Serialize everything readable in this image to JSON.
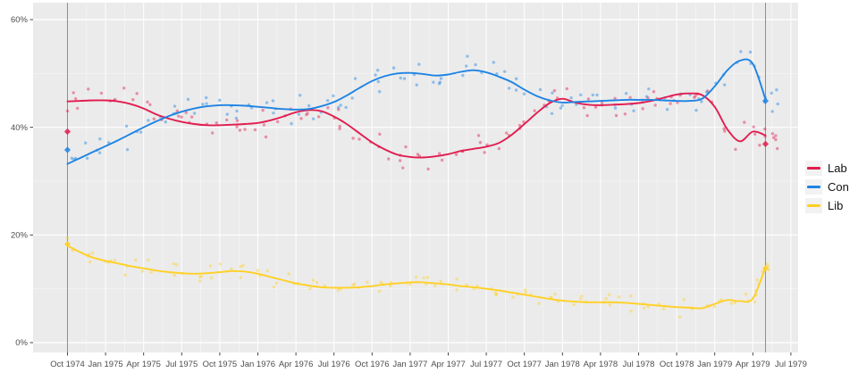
{
  "chart_data": {
    "type": "scatter",
    "title": "",
    "x_axis": {
      "unit": "months since Oct 1974",
      "total_months": 57,
      "months_per_tick": 3,
      "tick_labels": [
        "Oct 1974",
        "Jan 1975",
        "Apr 1975",
        "Jul 1975",
        "Oct 1975",
        "Jan 1976",
        "Apr 1976",
        "Jul 1976",
        "Oct 1976",
        "Jan 1977",
        "Apr 1977",
        "Jul 1977",
        "Oct 1977",
        "Jan 1978",
        "Apr 1978",
        "Jul 1978",
        "Oct 1978",
        "Jan 1979",
        "Apr 1979",
        "Jul 1979"
      ]
    },
    "y_axis": {
      "tick_labels": [
        "0%",
        "20%",
        "40%",
        "60%"
      ],
      "tick_values": [
        0,
        20,
        40,
        60
      ],
      "minor_values": [
        10,
        30,
        50
      ],
      "range": [
        0,
        63
      ]
    },
    "series": [
      {
        "name": "Lab",
        "color": "#e11d50",
        "trend": [
          44.8,
          44.9,
          45.0,
          45.0,
          44.8,
          44.3,
          43.5,
          42.4,
          41.6,
          41.0,
          40.6,
          40.4,
          40.4,
          40.5,
          40.6,
          40.8,
          41.3,
          42.0,
          42.8,
          43.2,
          43.0,
          42.0,
          40.6,
          38.9,
          37.2,
          35.9,
          34.9,
          34.5,
          34.4,
          34.6,
          35.0,
          35.6,
          36.0,
          36.4,
          37.1,
          38.6,
          40.6,
          42.7,
          44.5,
          45.3,
          44.6,
          44.2,
          44.1,
          44.2,
          44.3,
          44.5,
          44.9,
          45.5,
          46.1,
          46.3,
          46.0,
          43.8,
          39.6,
          37.4,
          39.2,
          38.5
        ]
      },
      {
        "name": "Con",
        "color": "#1e84e4",
        "trend": [
          33.2,
          34.3,
          35.4,
          36.5,
          37.6,
          38.8,
          40.0,
          41.1,
          42.1,
          42.9,
          43.5,
          43.9,
          44.1,
          44.1,
          44.0,
          43.8,
          43.6,
          43.4,
          43.3,
          43.4,
          43.9,
          44.7,
          45.9,
          47.3,
          48.6,
          49.5,
          50.0,
          50.1,
          49.9,
          49.6,
          49.8,
          50.3,
          50.6,
          50.2,
          49.4,
          48.4,
          47.0,
          45.8,
          45.0,
          44.6,
          44.7,
          44.8,
          44.9,
          45.0,
          45.1,
          45.1,
          45.1,
          45.0,
          44.9,
          44.9,
          45.3,
          47.6,
          50.6,
          52.4,
          51.8,
          45.2
        ]
      },
      {
        "name": "Lib",
        "color": "#ffd024",
        "trend": [
          18.0,
          16.8,
          15.8,
          15.2,
          14.7,
          14.2,
          13.8,
          13.4,
          13.1,
          12.9,
          12.8,
          12.9,
          13.1,
          13.3,
          13.2,
          12.8,
          12.2,
          11.6,
          11.0,
          10.6,
          10.3,
          10.2,
          10.2,
          10.3,
          10.5,
          10.8,
          11.0,
          11.2,
          11.2,
          11.0,
          10.8,
          10.5,
          10.3,
          10.0,
          9.7,
          9.3,
          8.9,
          8.5,
          8.1,
          7.8,
          7.6,
          7.5,
          7.5,
          7.5,
          7.4,
          7.2,
          7.0,
          6.8,
          6.6,
          6.5,
          6.4,
          7.2,
          7.9,
          7.7,
          8.2,
          14.0
        ]
      }
    ],
    "elections": [
      {
        "month": 0,
        "label": "Oct 1974",
        "results": {
          "Lab": 39.2,
          "Con": 35.8,
          "Lib": 18.3
        }
      },
      {
        "month": 55,
        "label": "May 1979",
        "results": {
          "Lab": 36.9,
          "Con": 44.9,
          "Lib": 13.8
        }
      }
    ],
    "scatter": {
      "points_per_month": 2,
      "seed": 1979,
      "noise": {
        "Lab": 3.0,
        "Con": 3.0,
        "Lib": 2.0
      },
      "x_jitter": 1.5,
      "extra_end_points": 6,
      "point_opacity": 0.45
    },
    "styles": {
      "panel_bg": "#ebebeb",
      "grid_major": "#ffffff",
      "grid_minor": "#ffffff",
      "election_line_color": "#8f8f8f",
      "tick_color": "#333333",
      "tick_text_color": "#4d4d4d"
    },
    "legend_position": "right"
  },
  "legend": {
    "items": [
      {
        "label": "Lab"
      },
      {
        "label": "Con"
      },
      {
        "label": "Lib"
      }
    ]
  }
}
